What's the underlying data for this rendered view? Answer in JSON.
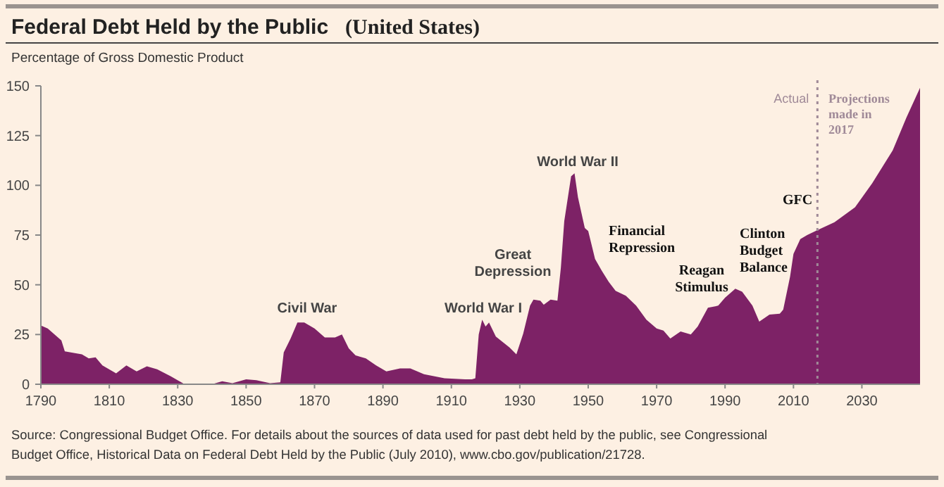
{
  "chart_data": {
    "type": "area",
    "title": "Federal Debt Held by the Public",
    "subtitle": "(United States)",
    "ylabel": "Percentage of Gross Domestic Product",
    "x": [
      1790,
      1792,
      1796,
      1797,
      1802,
      1804,
      1806,
      1808,
      1812,
      1815,
      1818,
      1821,
      1824,
      1828,
      1832,
      1835,
      1840,
      1843,
      1846,
      1850,
      1853,
      1857,
      1860,
      1861,
      1863,
      1865,
      1867,
      1870,
      1873,
      1876,
      1878,
      1880,
      1882,
      1885,
      1888,
      1891,
      1895,
      1898,
      1902,
      1908,
      1914,
      1916,
      1917,
      1918,
      1919,
      1920,
      1921,
      1923,
      1927,
      1929,
      1931,
      1933,
      1934,
      1936,
      1937,
      1939,
      1941,
      1942,
      1943,
      1945,
      1946,
      1947,
      1949,
      1950,
      1952,
      1954,
      1956,
      1958,
      1961,
      1964,
      1967,
      1970,
      1972,
      1974,
      1977,
      1980,
      1982,
      1985,
      1988,
      1990,
      1993,
      1995,
      1998,
      2000,
      2003,
      2006,
      2007,
      2009,
      2010,
      2012,
      2014,
      2017,
      2022,
      2028,
      2033,
      2039,
      2043,
      2047
    ],
    "values": [
      29.5,
      28,
      22,
      16.5,
      15,
      13,
      13.5,
      9.5,
      5.5,
      9.5,
      6.5,
      9,
      7.5,
      4,
      0,
      0,
      0,
      1.5,
      0.5,
      2.5,
      2,
      0.5,
      1,
      16,
      23,
      31,
      31,
      28,
      23.5,
      23.5,
      25,
      18,
      14.5,
      13,
      9.5,
      6.5,
      8,
      8,
      5,
      3,
      2.5,
      2.5,
      3,
      25,
      32.5,
      29,
      31,
      24,
      18.5,
      15,
      25.5,
      39.5,
      42.5,
      42,
      40,
      42.5,
      42,
      58.5,
      82,
      104.5,
      106,
      94,
      78.5,
      77,
      63,
      57,
      51.5,
      47,
      44.5,
      39.5,
      32.5,
      28,
      27,
      23,
      26.5,
      25,
      29,
      38.5,
      39.5,
      43.5,
      48,
      46.5,
      39.5,
      31.5,
      35,
      35.5,
      37.5,
      54,
      65.5,
      73,
      75,
      77.5,
      81.5,
      89,
      101,
      117.5,
      134,
      149
    ],
    "color": "#7d2266",
    "xlim": [
      1790,
      2047
    ],
    "xticks": [
      1790,
      1810,
      1830,
      1850,
      1870,
      1890,
      1910,
      1930,
      1950,
      1970,
      1990,
      2010,
      2030
    ],
    "ylim": [
      0,
      150
    ],
    "yticks": [
      0,
      25,
      50,
      75,
      100,
      125,
      150
    ],
    "ref_lines": [
      {
        "axis": "x",
        "value": 2017,
        "label": "Actual",
        "line_style": "dotted",
        "color": "#a08a98"
      }
    ],
    "annotations": [
      "Civil War",
      "World War I",
      "Great Depression",
      "World War II",
      "Financial Repression",
      "Reagan Stimulus",
      "Clinton Budget Balance",
      "GFC",
      "Projections made in 2017",
      "Source: Congressional Budget Office. For details about the sources of data used for past debt held by the public, see Congressional Budget Office, Historical Data on Federal Debt Held by the Public (July 2010), www.cbo.gov/publication/21728."
    ]
  }
}
